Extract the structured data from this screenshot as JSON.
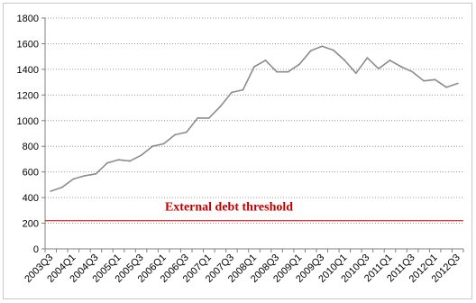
{
  "chart_data": {
    "type": "line",
    "title": "",
    "xlabel": "",
    "ylabel": "",
    "ylim": [
      0,
      1800
    ],
    "yticks": [
      0,
      200,
      400,
      600,
      800,
      1000,
      1200,
      1400,
      1600,
      1800
    ],
    "grid": "horizontal dotted",
    "legend": "none",
    "x": [
      "2003Q3",
      "2003Q4",
      "2004Q1",
      "2004Q2",
      "2004Q3",
      "2004Q4",
      "2005Q1",
      "2005Q2",
      "2005Q3",
      "2005Q4",
      "2006Q1",
      "2006Q2",
      "2006Q3",
      "2006Q4",
      "2007Q1",
      "2007Q2",
      "2007Q3",
      "2007Q4",
      "2008Q1",
      "2008Q2",
      "2008Q3",
      "2008Q4",
      "2009Q1",
      "2009Q2",
      "2009Q3",
      "2009Q4",
      "2010Q1",
      "2010Q2",
      "2010Q3",
      "2010Q4",
      "2011Q1",
      "2011Q2",
      "2011Q3",
      "2011Q4",
      "2012Q1",
      "2012Q2",
      "2012Q3"
    ],
    "x_tick_labels": [
      "2003Q3",
      "2004Q1",
      "2004Q3",
      "2005Q1",
      "2005Q3",
      "2006Q1",
      "2006Q3",
      "2007Q1",
      "2007Q3",
      "2008Q1",
      "2008Q3",
      "2009Q1",
      "2009Q3",
      "2010Q1",
      "2010Q3",
      "2011Q1",
      "2011Q3",
      "2012Q1",
      "2012Q3"
    ],
    "series": [
      {
        "values": [
          450,
          480,
          545,
          570,
          585,
          670,
          695,
          685,
          730,
          800,
          820,
          890,
          910,
          1020,
          1020,
          1110,
          1220,
          1240,
          1420,
          1470,
          1380,
          1380,
          1440,
          1545,
          1580,
          1550,
          1470,
          1370,
          1490,
          1405,
          1470,
          1420,
          1380,
          1310,
          1320,
          1260,
          1290
        ],
        "color": "#8c8c8c"
      }
    ],
    "threshold": {
      "label": "External debt threshold",
      "value": 220,
      "color": "#c00000"
    }
  }
}
